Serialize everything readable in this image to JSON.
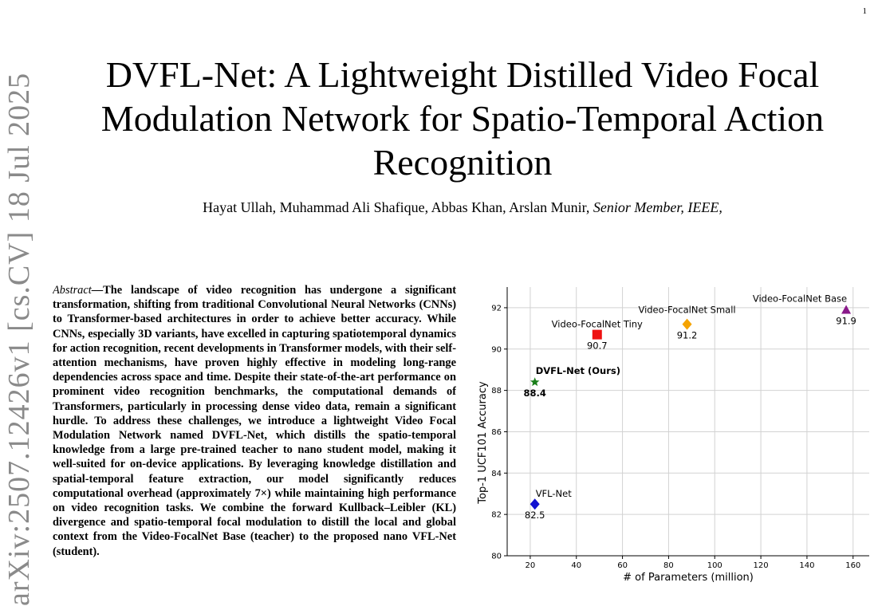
{
  "page": {
    "number": "1",
    "arxiv_stamp": "arXiv:2507.12426v1  [cs.CV]  18 Jul 2025"
  },
  "paper": {
    "title": "DVFL-Net: A Lightweight Distilled Video Focal Modulation Network for Spatio-Temporal Action Recognition",
    "authors": "Hayat Ullah, Muhammad Ali Shafique, Abbas Khan, Arslan Munir,",
    "author_note": "Senior Member, IEEE,",
    "abstract_label": "Abstract",
    "abstract_text": "—The landscape of video recognition has undergone a significant transformation, shifting from traditional Convolutional Neural Networks (CNNs) to Transformer-based architectures in order to achieve better accuracy. While CNNs, especially 3D variants, have excelled in capturing spatiotemporal dynamics for action recognition, recent developments in Transformer models, with their self-attention mechanisms, have proven highly effective in modeling long-range dependencies across space and time. Despite their state-of-the-art performance on prominent video recognition benchmarks, the computational demands of Transformers, particularly in processing dense video data, remain a significant hurdle. To address these challenges, we introduce a lightweight Video Focal Modulation Network named DVFL-Net, which distills the spatio-temporal knowledge from a large pre-trained teacher to nano student model, making it well-suited for on-device applications. By leveraging knowledge distillation and spatial-temporal feature extraction, our model significantly reduces computational overhead (approximately 7×) while maintaining high performance on video recognition tasks. We combine the forward Kullback–Leibler (KL) divergence and spatio-temporal focal modulation to distill the local and global context from the Video-FocalNet Base (teacher) to the proposed nano VFL-Net (student)."
  },
  "chart_data": {
    "type": "scatter",
    "xlabel": "# of Parameters (million)",
    "ylabel": "Top-1 UCF101 Accuracy",
    "xlim": [
      10,
      167
    ],
    "ylim": [
      80,
      93
    ],
    "xticks": [
      20,
      40,
      60,
      80,
      100,
      120,
      140,
      160
    ],
    "yticks": [
      80,
      82,
      84,
      86,
      88,
      90,
      92
    ],
    "grid": true,
    "points": [
      {
        "name": "VFL-Net",
        "x": 22,
        "y": 82.5,
        "label": "82.5",
        "marker": "diamond",
        "color": "#1010d0",
        "bold": false
      },
      {
        "name": "DVFL-Net (Ours)",
        "x": 22,
        "y": 88.4,
        "label": "88.4",
        "marker": "star",
        "color": "#1a7f1a",
        "bold": true
      },
      {
        "name": "Video-FocalNet Tiny",
        "x": 49,
        "y": 90.7,
        "label": "90.7",
        "marker": "square",
        "color": "#ee1111",
        "bold": false
      },
      {
        "name": "Video-FocalNet Small",
        "x": 88,
        "y": 91.2,
        "label": "91.2",
        "marker": "diamond",
        "color": "#f5a300",
        "bold": false
      },
      {
        "name": "Video-FocalNet Base",
        "x": 157,
        "y": 91.9,
        "label": "91.9",
        "marker": "triangle",
        "color": "#8a1a8a",
        "bold": false
      }
    ]
  }
}
